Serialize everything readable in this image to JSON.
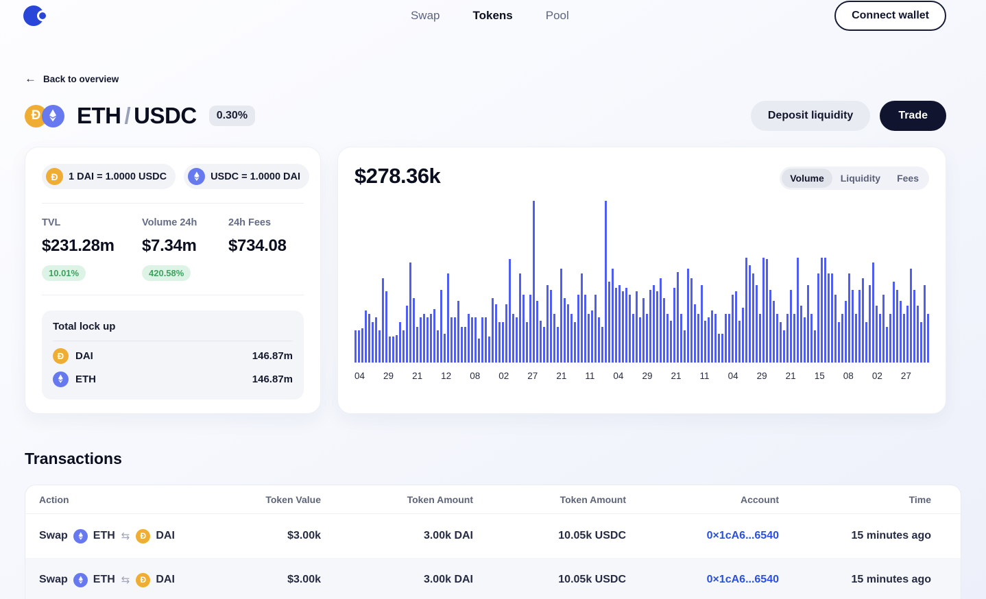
{
  "nav": {
    "items": [
      {
        "label": "Swap",
        "active": false
      },
      {
        "label": "Tokens",
        "active": true
      },
      {
        "label": "Pool",
        "active": false
      }
    ],
    "connect_wallet_label": "Connect wallet"
  },
  "back_link": {
    "label": "Back to overview",
    "arrow": "←"
  },
  "pool": {
    "title_base": "ETH",
    "title_separator": "/",
    "title_quote": "USDC",
    "fee_badge": "0.30%",
    "deposit_button": "Deposit liquidity",
    "trade_button": "Trade"
  },
  "stats": {
    "rate_pills": [
      {
        "token": "DAI",
        "label": "1 DAI = 1.0000 USDC"
      },
      {
        "token": "ETH",
        "label": "USDC = 1.0000 DAI"
      }
    ],
    "metrics": [
      {
        "label": "TVL",
        "value": "$231.28m",
        "badge": "10.01%"
      },
      {
        "label": "Volume 24h",
        "value": "$7.34m",
        "badge": "420.58%"
      },
      {
        "label": "24h Fees",
        "value": "$734.08",
        "badge": null
      }
    ],
    "lockup": {
      "title": "Total lock up",
      "rows": [
        {
          "token": "DAI",
          "name": "DAI",
          "value": "146.87m"
        },
        {
          "token": "ETH",
          "name": "ETH",
          "value": "146.87m"
        }
      ]
    }
  },
  "chart": {
    "value": "$278.36k",
    "tabs": [
      {
        "label": "Volume",
        "active": true
      },
      {
        "label": "Liquidity",
        "active": false
      },
      {
        "label": "Fees",
        "active": false
      }
    ]
  },
  "chart_data": {
    "type": "bar",
    "title": "$278.36k",
    "ylabel": "",
    "xlabel": "",
    "legend": null,
    "grid": false,
    "bar_color": "#4f5ef0",
    "ylim": [
      0,
      100
    ],
    "units": "relative height, % of tallest spike",
    "x_tick_labels": [
      "04",
      "29",
      "21",
      "12",
      "08",
      "02",
      "27",
      "21",
      "11",
      "04",
      "29",
      "21",
      "11",
      "04",
      "29",
      "21",
      "15",
      "08",
      "02",
      "27"
    ],
    "values": [
      20,
      20,
      21,
      32,
      30,
      25,
      28,
      20,
      52,
      44,
      16,
      16,
      17,
      25,
      20,
      35,
      62,
      40,
      22,
      28,
      30,
      28,
      30,
      33,
      20,
      45,
      18,
      55,
      28,
      28,
      38,
      22,
      22,
      30,
      28,
      28,
      15,
      28,
      28,
      16,
      40,
      36,
      25,
      25,
      36,
      64,
      30,
      28,
      55,
      42,
      25,
      42,
      100,
      38,
      26,
      22,
      48,
      45,
      30,
      22,
      58,
      40,
      36,
      30,
      25,
      42,
      55,
      42,
      30,
      32,
      42,
      28,
      22,
      100,
      50,
      58,
      46,
      48,
      44,
      46,
      42,
      30,
      44,
      28,
      40,
      30,
      45,
      48,
      44,
      52,
      40,
      30,
      26,
      46,
      56,
      30,
      20,
      58,
      52,
      36,
      30,
      48,
      26,
      28,
      32,
      30,
      18,
      18,
      30,
      30,
      42,
      44,
      26,
      34,
      65,
      60,
      55,
      48,
      30,
      65,
      64,
      45,
      38,
      30,
      25,
      20,
      30,
      45,
      30,
      65,
      35,
      28,
      48,
      30,
      20,
      55,
      65,
      65,
      55,
      55,
      42,
      25,
      30,
      38,
      55,
      45,
      30,
      45,
      52,
      25,
      48,
      62,
      35,
      30,
      42,
      22,
      30,
      50,
      45,
      38,
      30,
      35,
      58,
      45,
      35,
      25,
      48,
      30
    ]
  },
  "transactions": {
    "title": "Transactions",
    "columns": [
      "Action",
      "Token Value",
      "Token Amount",
      "Token Amount",
      "Account",
      "Time"
    ],
    "rows": [
      {
        "action": "Swap",
        "from_token": "ETH",
        "to_token": "DAI",
        "token_value": "$3.00k",
        "amount1": "3.00k DAI",
        "amount2": "10.05k USDC",
        "account": "0×1cA6...6540",
        "time": "15 minutes ago"
      },
      {
        "action": "Swap",
        "from_token": "ETH",
        "to_token": "DAI",
        "token_value": "$3.00k",
        "amount1": "3.00k DAI",
        "amount2": "10.05k USDC",
        "account": "0×1cA6...6540",
        "time": "15 minutes ago"
      }
    ]
  },
  "colors": {
    "accent_blue": "#2a46d8",
    "bar_blue": "#4f5ef0",
    "dark_navy": "#10142e",
    "dai_amber": "#f0ad33",
    "eth_periwinkle": "#6779ee",
    "green_badge_bg": "#ddf3e6",
    "green_badge_text": "#3da25d",
    "link_blue": "#2b50e0"
  }
}
